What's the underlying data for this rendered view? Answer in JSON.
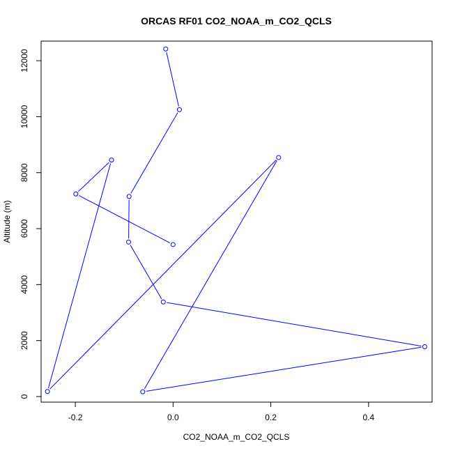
{
  "chart_data": {
    "type": "line",
    "title": "ORCAS RF01 CO2_NOAA_m_CO2_QCLS",
    "xlabel": "CO2_NOAA_m_CO2_QCLS",
    "ylabel": "Altitude (m)",
    "xlim": [
      -0.27,
      0.53
    ],
    "ylim": [
      -200,
      12700
    ],
    "xticks": [
      -0.2,
      0.0,
      0.2,
      0.4
    ],
    "xtick_labels": [
      "-0.2",
      "0.0",
      "0.2",
      "0.4"
    ],
    "yticks": [
      0,
      2000,
      4000,
      6000,
      8000,
      10000,
      12000
    ],
    "ytick_labels": [
      "0",
      "2000",
      "4000",
      "6000",
      "8000",
      "10000",
      "12000"
    ],
    "grid": false,
    "series": [
      {
        "color": "#0000ff",
        "marker": "open-circle",
        "points": [
          {
            "x": -0.015,
            "y": 12420
          },
          {
            "x": 0.013,
            "y": 10250
          },
          {
            "x": -0.09,
            "y": 7150
          },
          {
            "x": -0.091,
            "y": 5520
          },
          {
            "x": -0.02,
            "y": 3380
          },
          {
            "x": 0.515,
            "y": 1780
          },
          {
            "x": -0.062,
            "y": 170
          },
          {
            "x": 0.216,
            "y": 8540
          },
          {
            "x": -0.257,
            "y": 180
          },
          {
            "x": -0.126,
            "y": 8450
          },
          {
            "x": -0.199,
            "y": 7240
          },
          {
            "x": 0.0,
            "y": 5430
          }
        ]
      }
    ]
  }
}
